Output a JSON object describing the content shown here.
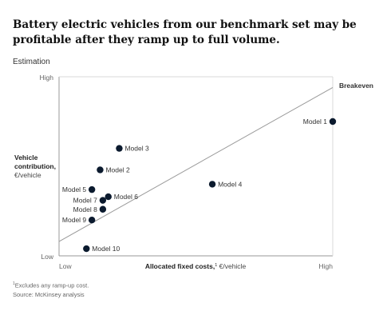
{
  "title": "Battery electric vehicles from our benchmark set may be profitable after they ramp up to full volume.",
  "subtitle": "Estimation",
  "footnotes": {
    "note": "Excludes any ramp-up cost.",
    "marker": "1",
    "source": "Source: McKinsey analysis"
  },
  "chart_data": {
    "type": "scatter",
    "xlabel": {
      "bold": "Allocated fixed costs,",
      "superscript": "1",
      "unit": " €/vehicle"
    },
    "ylabel": {
      "bold_line1": "Vehicle",
      "bold_line2": "contribution,",
      "unit": "€/vehicle"
    },
    "x_ticks": {
      "low": "Low",
      "high": "High"
    },
    "y_ticks": {
      "low": "Low",
      "high": "High"
    },
    "xlim": [
      0,
      100
    ],
    "ylim": [
      0,
      100
    ],
    "breakeven": {
      "label": "Breakeven",
      "from": [
        0,
        8
      ],
      "to": [
        100,
        94
      ]
    },
    "points": [
      {
        "label": "Model 1",
        "x": 100,
        "y": 75,
        "label_side": "left"
      },
      {
        "label": "Model 2",
        "x": 15,
        "y": 48,
        "label_side": "right"
      },
      {
        "label": "Model 3",
        "x": 22,
        "y": 60,
        "label_side": "right"
      },
      {
        "label": "Model 4",
        "x": 56,
        "y": 40,
        "label_side": "right"
      },
      {
        "label": "Model 5",
        "x": 12,
        "y": 37,
        "label_side": "left"
      },
      {
        "label": "Model 6",
        "x": 18,
        "y": 33,
        "label_side": "right"
      },
      {
        "label": "Model 7",
        "x": 16,
        "y": 31,
        "label_side": "left"
      },
      {
        "label": "Model 8",
        "x": 16,
        "y": 26,
        "label_side": "left"
      },
      {
        "label": "Model 9",
        "x": 12,
        "y": 20,
        "label_side": "left"
      },
      {
        "label": "Model 10",
        "x": 10,
        "y": 4,
        "label_side": "right"
      }
    ],
    "colors": {
      "point": "#0b1a2e",
      "line": "#9a9a9a",
      "axis": "#9a9a9a",
      "text": "#333333"
    }
  }
}
